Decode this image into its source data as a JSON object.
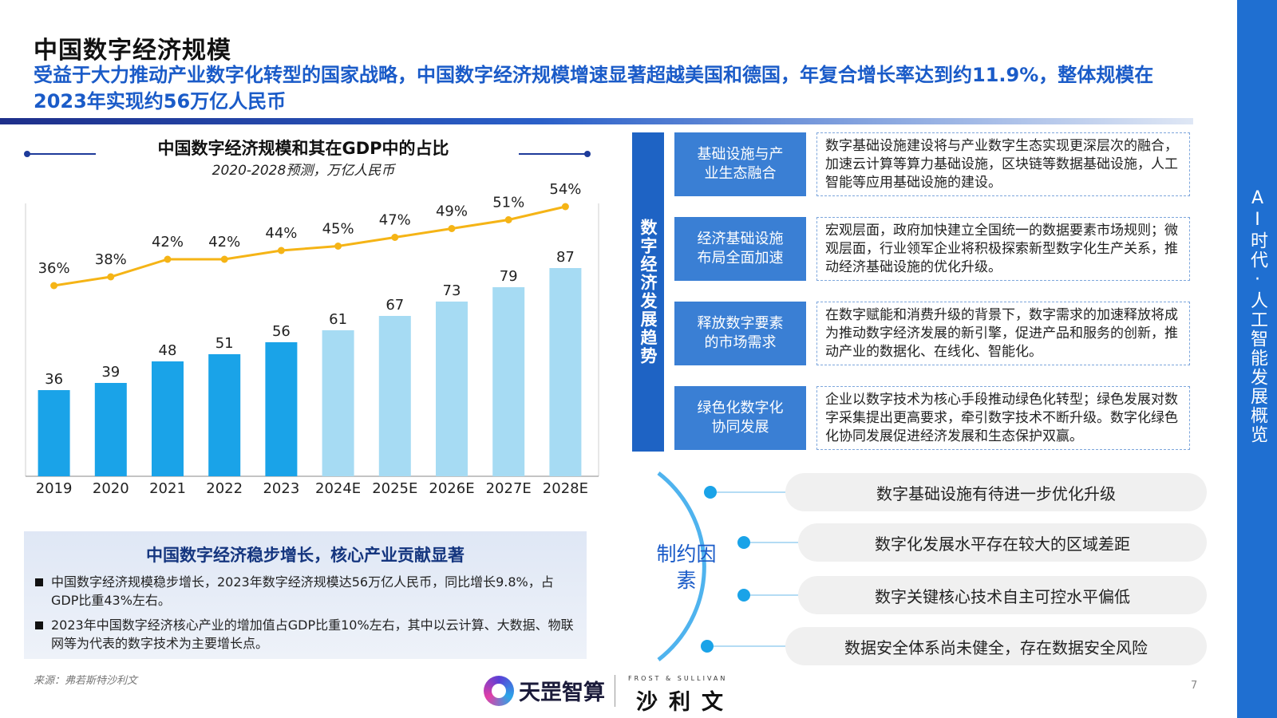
{
  "header": {
    "title": "中国数字经济规模",
    "subtitle": "受益于大力推动产业数字化转型的国家战略，中国数字经济规模增速显著超越美国和德国，年复合增长率达到约11.9%，整体规模在2023年实现约56万亿人民币"
  },
  "sidebar": {
    "text": "AI时代·人工智能发展概览"
  },
  "chart_data": {
    "type": "bar",
    "title": "中国数字经济规模和其在GDP中的占比",
    "subtitle": "2020-2028预测，万亿人民币",
    "categories": [
      "2019",
      "2020",
      "2021",
      "2022",
      "2023",
      "2024E",
      "2025E",
      "2026E",
      "2027E",
      "2028E"
    ],
    "series": [
      {
        "values": [
          36,
          39,
          48,
          51,
          56,
          61,
          67,
          73,
          79,
          87
        ],
        "type": "bar",
        "color_actual": "#1aa3e8",
        "color_forecast": "#a6dbf3"
      },
      {
        "values": [
          36,
          38,
          42,
          42,
          44,
          45,
          47,
          49,
          51,
          54
        ],
        "type": "line",
        "unit": "%",
        "color": "#f5b416"
      }
    ],
    "bar_labels": [
      "36",
      "39",
      "48",
      "51",
      "56",
      "61",
      "67",
      "73",
      "79",
      "87"
    ],
    "line_labels": [
      "36%",
      "38%",
      "42%",
      "42%",
      "44%",
      "45%",
      "47%",
      "49%",
      "51%",
      "54%"
    ],
    "ylim": [
      0,
      100
    ],
    "grid": false
  },
  "summary": {
    "title": "中国数字经济稳步增长，核心产业贡献显著",
    "items": [
      "中国数字经济规模稳步增长，2023年数字经济规模达56万亿人民币，同比增长9.8%，占GDP比重43%左右。",
      "2023年中国数字经济核心产业的增加值占GDP比重10%左右，其中以云计算、大数据、物联网等为代表的数字技术为主要增长点。"
    ]
  },
  "source": "来源：弗若斯特沙利文",
  "trends": {
    "heading": "数字经济发展趋势",
    "items": [
      {
        "label": "基础设施与产业生态融合",
        "desc": "数字基础设施建设将与产业数字生态实现更深层次的融合，加速云计算等算力基础设施，区块链等数据基础设施，人工智能等应用基础设施的建设。"
      },
      {
        "label": "经济基础设施布局全面加速",
        "desc": "宏观层面，政府加快建立全国统一的数据要素市场规则；微观层面，行业领军企业将积极探索新型数字化生产关系，推动经济基础设施的优化升级。"
      },
      {
        "label": "释放数字要素的市场需求",
        "desc": "在数字赋能和消费升级的背景下，数字需求的加速释放将成为推动数字经济发展的新引擎，促进产品和服务的创新，推动产业的数据化、在线化、智能化。"
      },
      {
        "label": "绿色化数字化协同发展",
        "desc": "企业以数字技术为核心手段推动绿色化转型；绿色发展对数字采集提出更高要求，牵引数字技术不断升级。数字化绿色化协同发展促进经济发展和生态保护双赢。"
      }
    ]
  },
  "constraints": {
    "label": "制约因素",
    "items": [
      "数字基础设施有待进一步优化升级",
      "数字化发展水平存在较大的区域差距",
      "数字关键核心技术自主可控水平偏低",
      "数据安全体系尚未健全，存在数据安全风险"
    ]
  },
  "footer": {
    "logo_text": "天罡智算",
    "partner_small": "FROST & SULLIVAN",
    "partner_big": "沙利文",
    "page_number": "7"
  },
  "colors": {
    "accent_blue": "#1a5bc8",
    "trend_blue": "#3a7fd4",
    "line_gold": "#f5b416"
  }
}
